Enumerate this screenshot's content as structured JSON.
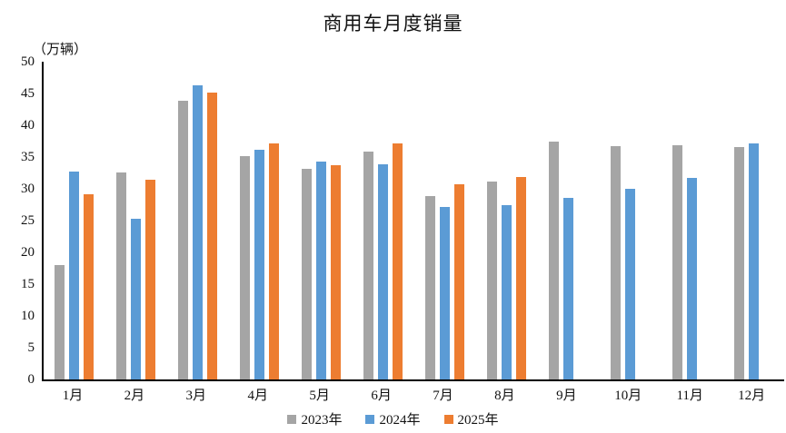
{
  "chart_data": {
    "type": "bar",
    "title": "商用车月度销量",
    "unit_label": "（万辆）",
    "categories": [
      "1月",
      "2月",
      "3月",
      "4月",
      "5月",
      "6月",
      "7月",
      "8月",
      "9月",
      "10月",
      "11月",
      "12月"
    ],
    "series": [
      {
        "name": "2023年",
        "color": "#A5A5A5",
        "values": [
          18.0,
          32.6,
          43.8,
          35.1,
          33.2,
          35.9,
          28.9,
          31.2,
          37.4,
          36.7,
          36.9,
          36.6
        ]
      },
      {
        "name": "2024年",
        "color": "#5B9BD5",
        "values": [
          32.7,
          25.3,
          46.3,
          36.1,
          34.3,
          33.9,
          27.1,
          27.4,
          28.6,
          30.0,
          31.7,
          37.2
        ]
      },
      {
        "name": "2025年",
        "color": "#ED7D31",
        "values": [
          29.1,
          31.4,
          45.1,
          37.1,
          33.7,
          37.1,
          30.7,
          31.9,
          null,
          null,
          null,
          null
        ]
      }
    ],
    "ylim": [
      0,
      50
    ],
    "yticks": [
      0,
      5,
      10,
      15,
      20,
      25,
      30,
      35,
      40,
      45,
      50
    ],
    "grid": false,
    "legend_position": "bottom",
    "axis_color": "#000000"
  }
}
